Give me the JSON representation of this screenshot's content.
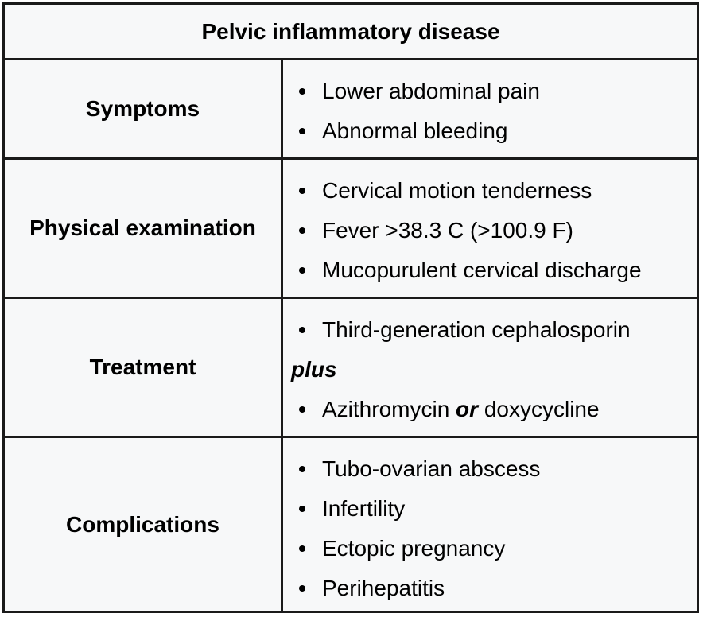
{
  "table": {
    "title": "Pelvic inflammatory disease",
    "rows": [
      {
        "label": "Symptoms",
        "items": [
          "Lower abdominal pain",
          "Abnormal bleeding"
        ]
      },
      {
        "label": "Physical examination",
        "items": [
          "Cervical motion tenderness",
          "Fever >38.3 C (>100.9 F)",
          "Mucopurulent cervical discharge"
        ]
      },
      {
        "label": "Treatment",
        "item1": "Third-generation cephalosporin",
        "connector": "plus",
        "item2_a": "Azithromycin",
        "item2_conj": "or",
        "item2_b": "doxycycline"
      },
      {
        "label": "Complications",
        "items": [
          "Tubo-ovarian abscess",
          "Infertility",
          "Ectopic pregnancy",
          "Perihepatitis"
        ]
      }
    ]
  }
}
